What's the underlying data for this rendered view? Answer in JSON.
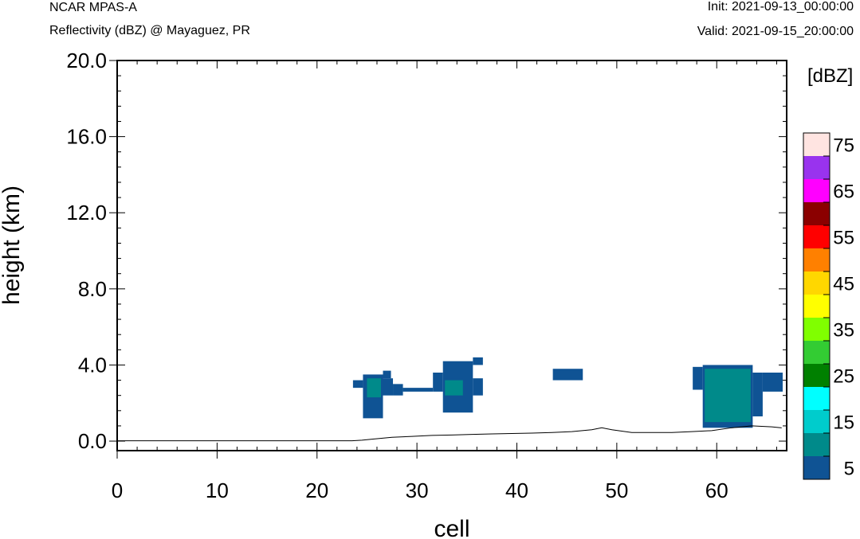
{
  "header": {
    "model": "NCAR MPAS-A",
    "field": "Reflectivity (dBZ) @ Mayaguez, PR",
    "init": "Init: 2021-09-13_00:00:00",
    "valid": "Valid: 2021-09-15_20:00:00"
  },
  "chart_data": {
    "type": "heatmap",
    "title": "Reflectivity (dBZ) @ Mayaguez, PR",
    "xlabel": "cell",
    "ylabel": "height (km)",
    "xlim": [
      0,
      67
    ],
    "ylim": [
      -0.5,
      20.0
    ],
    "xticks": [
      "0",
      "10",
      "20",
      "30",
      "40",
      "50",
      "60"
    ],
    "yticks": [
      "0.0",
      "4.0",
      "8.0",
      "12.0",
      "16.0",
      "20.0"
    ],
    "colorbar": {
      "unit": "[dBZ]",
      "levels": [
        5,
        10,
        15,
        20,
        25,
        30,
        35,
        40,
        45,
        50,
        55,
        60,
        65,
        70,
        75
      ],
      "labels": [
        "5",
        "15",
        "25",
        "35",
        "45",
        "55",
        "65",
        "75"
      ],
      "colors": [
        "#0f5394",
        "#008a8a",
        "#00cccc",
        "#00ffff",
        "#008000",
        "#33cc33",
        "#80ff00",
        "#ffff00",
        "#ffd700",
        "#ff8000",
        "#ff0000",
        "#8b0000",
        "#ff00ff",
        "#9933ee",
        "#ffe4e1"
      ]
    },
    "cells": [
      {
        "x": [
          23.6,
          24.6
        ],
        "y": [
          2.8,
          3.2
        ],
        "dbz": 5
      },
      {
        "x": [
          24.6,
          26.6
        ],
        "y": [
          1.2,
          3.5
        ],
        "dbz": 5
      },
      {
        "x": [
          25.0,
          26.4
        ],
        "y": [
          2.3,
          3.3
        ],
        "dbz": 10
      },
      {
        "x": [
          26.6,
          27.6
        ],
        "y": [
          2.4,
          3.3
        ],
        "dbz": 5
      },
      {
        "x": [
          26.6,
          27.4
        ],
        "y": [
          3.3,
          3.7
        ],
        "dbz": 5
      },
      {
        "x": [
          27.6,
          28.6
        ],
        "y": [
          2.4,
          3.0
        ],
        "dbz": 5
      },
      {
        "x": [
          28.6,
          31.6
        ],
        "y": [
          2.6,
          2.8
        ],
        "dbz": 5
      },
      {
        "x": [
          31.6,
          32.6
        ],
        "y": [
          2.6,
          3.6
        ],
        "dbz": 5
      },
      {
        "x": [
          32.6,
          35.6
        ],
        "y": [
          1.5,
          4.2
        ],
        "dbz": 5
      },
      {
        "x": [
          32.8,
          34.6
        ],
        "y": [
          2.4,
          3.2
        ],
        "dbz": 10
      },
      {
        "x": [
          35.6,
          36.6
        ],
        "y": [
          2.4,
          3.3
        ],
        "dbz": 5
      },
      {
        "x": [
          35.6,
          36.6
        ],
        "y": [
          4.0,
          4.4
        ],
        "dbz": 5
      },
      {
        "x": [
          43.6,
          46.6
        ],
        "y": [
          3.2,
          3.8
        ],
        "dbz": 5
      },
      {
        "x": [
          57.6,
          58.6
        ],
        "y": [
          2.7,
          3.9
        ],
        "dbz": 5
      },
      {
        "x": [
          58.6,
          63.6
        ],
        "y": [
          0.7,
          4.0
        ],
        "dbz": 5
      },
      {
        "x": [
          58.8,
          63.4
        ],
        "y": [
          1.0,
          3.8
        ],
        "dbz": 10
      },
      {
        "x": [
          63.6,
          64.6
        ],
        "y": [
          1.3,
          3.6
        ],
        "dbz": 5
      },
      {
        "x": [
          64.6,
          66.6
        ],
        "y": [
          2.6,
          3.6
        ],
        "dbz": 5
      }
    ],
    "terrain": {
      "x": [
        0,
        23.5,
        24.5,
        25.5,
        27.5,
        29.5,
        31.5,
        33.5,
        35.5,
        37.5,
        39.5,
        41.5,
        43.5,
        45.5,
        47.5,
        48.5,
        49.5,
        51.5,
        53.5,
        55.5,
        57.5,
        59.5,
        61.5,
        63.5,
        65.5,
        66.5
      ],
      "y": [
        0.02,
        0.02,
        0.05,
        0.1,
        0.2,
        0.25,
        0.3,
        0.32,
        0.35,
        0.38,
        0.4,
        0.42,
        0.45,
        0.5,
        0.6,
        0.7,
        0.6,
        0.45,
        0.45,
        0.45,
        0.5,
        0.55,
        0.7,
        0.8,
        0.75,
        0.7
      ]
    }
  }
}
